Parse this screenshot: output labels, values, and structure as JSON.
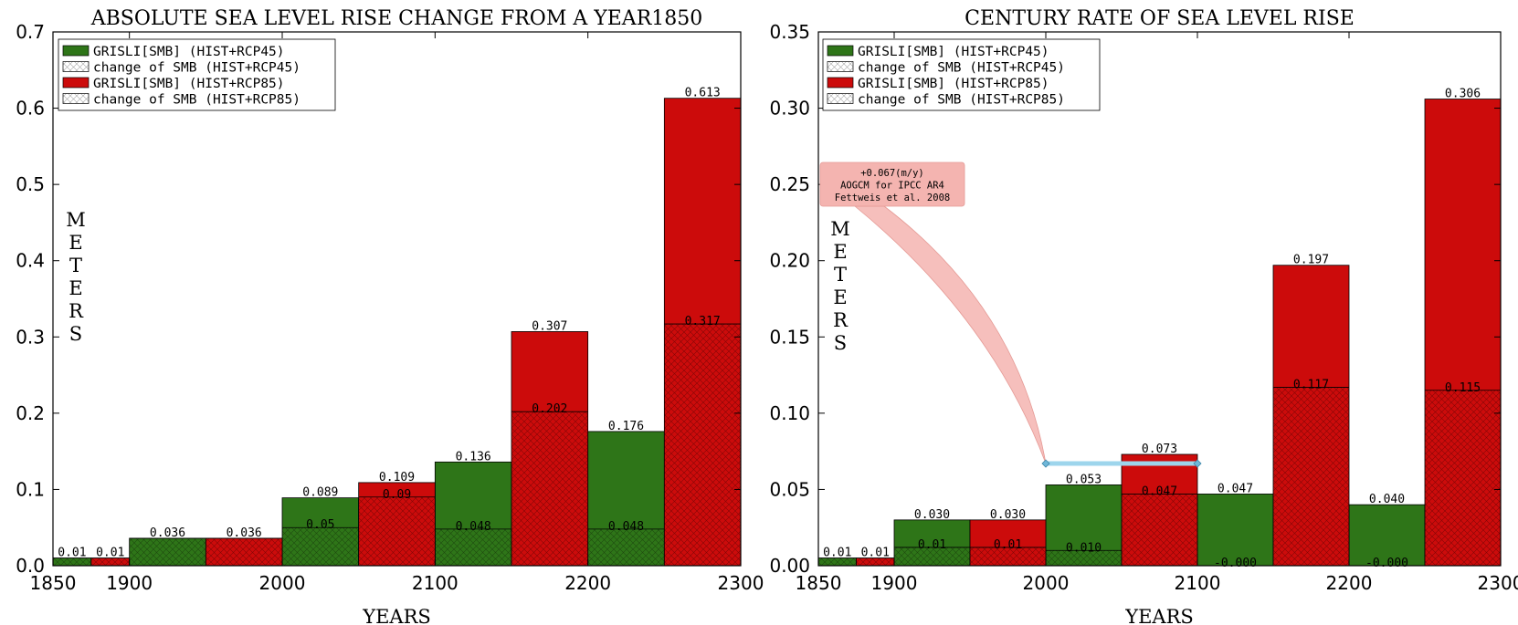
{
  "colors": {
    "rcp45": "#2e7518",
    "rcp85": "#cc0b0b",
    "annotation_box": "#f4b4b0",
    "annotation_line": "#9dd5ec"
  },
  "chart_data": [
    {
      "type": "bar",
      "title": "ABSOLUTE SEA LEVEL RISE CHANGE FROM  A YEAR1850",
      "xlabel": "YEARS",
      "ylabel": "METERS",
      "xlim": [
        1850,
        2300
      ],
      "ylim": [
        0,
        0.7
      ],
      "xticks": [
        1850,
        1900,
        2000,
        2100,
        2200,
        2300
      ],
      "yticks": [
        "0.0",
        "0.1",
        "0.2",
        "0.3",
        "0.4",
        "0.5",
        "0.6",
        "0.7"
      ],
      "legend": {
        "position": "top-left",
        "entries": [
          {
            "label": "GRISLI[SMB] (HIST+RCP45)",
            "style": "solid",
            "color": "#2e7518"
          },
          {
            "label": "change of SMB (HIST+RCP45)",
            "style": "hatch"
          },
          {
            "label": "GRISLI[SMB] (HIST+RCP85)",
            "style": "solid",
            "color": "#cc0b0b"
          },
          {
            "label": "change of SMB (HIST+RCP85)",
            "style": "hatch"
          }
        ]
      },
      "series": [
        {
          "name": "GRISLI[SMB] (HIST+RCP45)",
          "color": "#2e7518",
          "x_start": [
            1850,
            1900,
            2000,
            2100,
            2200
          ],
          "x_end": [
            1875,
            1950,
            2050,
            2150,
            2250
          ],
          "values": [
            0.01,
            0.036,
            0.089,
            0.136,
            0.176
          ],
          "labels": [
            "0.01",
            "0.036",
            "0.089",
            "0.136",
            "0.176"
          ],
          "smb_values": [
            0.01,
            0.036,
            0.05,
            0.048,
            0.048
          ],
          "smb_labels": [
            "",
            "",
            "0.05",
            "0.048",
            "0.048"
          ]
        },
        {
          "name": "GRISLI[SMB] (HIST+RCP85)",
          "color": "#cc0b0b",
          "x_start": [
            1875,
            1950,
            2050,
            2150,
            2250
          ],
          "x_end": [
            1900,
            2000,
            2100,
            2200,
            2300
          ],
          "values": [
            0.01,
            0.036,
            0.109,
            0.307,
            0.613
          ],
          "labels": [
            "0.01",
            "0.036",
            "0.109",
            "0.307",
            "0.613"
          ],
          "smb_values": [
            0.01,
            0.036,
            0.09,
            0.202,
            0.317
          ],
          "smb_labels": [
            "",
            "",
            "0.09",
            "0.202",
            "0.317"
          ]
        }
      ]
    },
    {
      "type": "bar",
      "title": "CENTURY RATE OF SEA LEVEL RISE",
      "xlabel": "YEARS",
      "ylabel": "METERS",
      "xlim": [
        1850,
        2300
      ],
      "ylim": [
        0,
        0.35
      ],
      "xticks": [
        1850,
        1900,
        2000,
        2100,
        2200,
        2300
      ],
      "yticks": [
        "0.00",
        "0.05",
        "0.10",
        "0.15",
        "0.20",
        "0.25",
        "0.30",
        "0.35"
      ],
      "legend": {
        "position": "top-left",
        "entries": [
          {
            "label": "GRISLI[SMB] (HIST+RCP45)",
            "style": "solid",
            "color": "#2e7518"
          },
          {
            "label": "change of SMB (HIST+RCP45)",
            "style": "hatch"
          },
          {
            "label": "GRISLI[SMB] (HIST+RCP85)",
            "style": "solid",
            "color": "#cc0b0b"
          },
          {
            "label": "change of SMB (HIST+RCP85)",
            "style": "hatch"
          }
        ]
      },
      "series": [
        {
          "name": "GRISLI[SMB] (HIST+RCP45)",
          "color": "#2e7518",
          "x_start": [
            1850,
            1900,
            2000,
            2100,
            2200
          ],
          "x_end": [
            1875,
            1950,
            2050,
            2150,
            2250
          ],
          "values": [
            0.005,
            0.03,
            0.053,
            0.047,
            0.04
          ],
          "labels": [
            "0.01",
            "0.030",
            "0.053",
            "0.047",
            "0.040"
          ],
          "smb_values": [
            0.005,
            0.012,
            0.01,
            0.0,
            0.0
          ],
          "smb_labels": [
            "",
            "0.01",
            "0.010",
            "-0.000",
            "-0.000"
          ]
        },
        {
          "name": "GRISLI[SMB] (HIST+RCP85)",
          "color": "#cc0b0b",
          "x_start": [
            1875,
            1950,
            2050,
            2150,
            2250
          ],
          "x_end": [
            1900,
            2000,
            2100,
            2200,
            2300
          ],
          "values": [
            0.005,
            0.03,
            0.073,
            0.197,
            0.306
          ],
          "labels": [
            "0.01",
            "0.030",
            "0.073",
            "0.197",
            "0.306"
          ],
          "smb_values": [
            0.005,
            0.012,
            0.047,
            0.117,
            0.115
          ],
          "smb_labels": [
            "",
            "0.01",
            "0.047",
            "0.117",
            "0.115"
          ]
        }
      ],
      "reference_line": {
        "x": [
          2000,
          2100
        ],
        "y": 0.067,
        "text": [
          "+0.067(m/y)",
          "AOGCM for IPCC AR4",
          "Fettweis et al. 2008"
        ]
      }
    }
  ]
}
